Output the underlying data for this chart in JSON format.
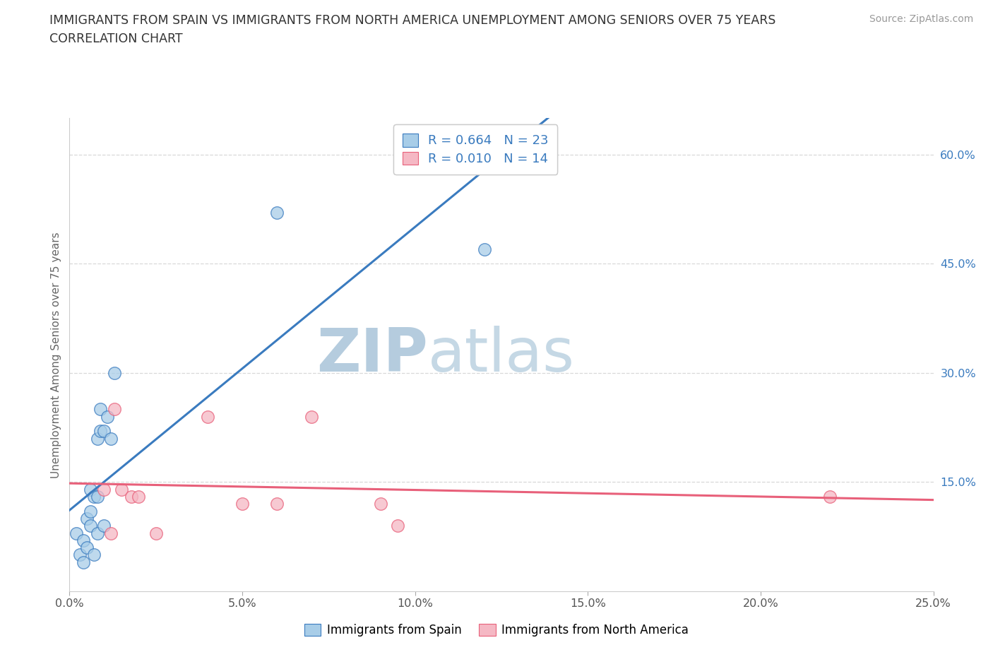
{
  "title_line1": "IMMIGRANTS FROM SPAIN VS IMMIGRANTS FROM NORTH AMERICA UNEMPLOYMENT AMONG SENIORS OVER 75 YEARS",
  "title_line2": "CORRELATION CHART",
  "source": "Source: ZipAtlas.com",
  "ylabel": "Unemployment Among Seniors over 75 years",
  "xlim": [
    0.0,
    0.25
  ],
  "ylim": [
    0.0,
    0.65
  ],
  "spain_R": 0.664,
  "spain_N": 23,
  "northam_R": 0.01,
  "northam_N": 14,
  "spain_color": "#a8cde8",
  "northam_color": "#f5b8c4",
  "spain_line_color": "#3a7bbf",
  "northam_line_color": "#e8607a",
  "legend_text_color": "#3a7bbf",
  "ytick_color": "#3a7bbf",
  "xtick_color": "#555555",
  "watermark_zip_color": "#b8d0e8",
  "watermark_atlas_color": "#c8dce8",
  "background_color": "#ffffff",
  "grid_color": "#d8d8d8",
  "spain_x": [
    0.002,
    0.003,
    0.004,
    0.004,
    0.005,
    0.005,
    0.006,
    0.006,
    0.006,
    0.007,
    0.007,
    0.008,
    0.008,
    0.008,
    0.009,
    0.009,
    0.01,
    0.01,
    0.011,
    0.012,
    0.013,
    0.06,
    0.12
  ],
  "spain_y": [
    0.08,
    0.05,
    0.04,
    0.07,
    0.06,
    0.1,
    0.09,
    0.11,
    0.14,
    0.05,
    0.13,
    0.08,
    0.13,
    0.21,
    0.22,
    0.25,
    0.09,
    0.22,
    0.24,
    0.21,
    0.3,
    0.52,
    0.47
  ],
  "northam_x": [
    0.01,
    0.012,
    0.013,
    0.015,
    0.018,
    0.02,
    0.025,
    0.04,
    0.05,
    0.06,
    0.07,
    0.09,
    0.095,
    0.22
  ],
  "northam_y": [
    0.14,
    0.08,
    0.25,
    0.14,
    0.13,
    0.13,
    0.08,
    0.24,
    0.12,
    0.12,
    0.24,
    0.12,
    0.09,
    0.13
  ],
  "ytick_positions": [
    0.15,
    0.3,
    0.45,
    0.6
  ],
  "ytick_labels": [
    "15.0%",
    "30.0%",
    "45.0%",
    "60.0%"
  ],
  "xtick_positions": [
    0.0,
    0.05,
    0.1,
    0.15,
    0.2,
    0.25
  ],
  "xtick_labels": [
    "0.0%",
    "5.0%",
    "10.0%",
    "15.0%",
    "20.0%",
    "25.0%"
  ]
}
